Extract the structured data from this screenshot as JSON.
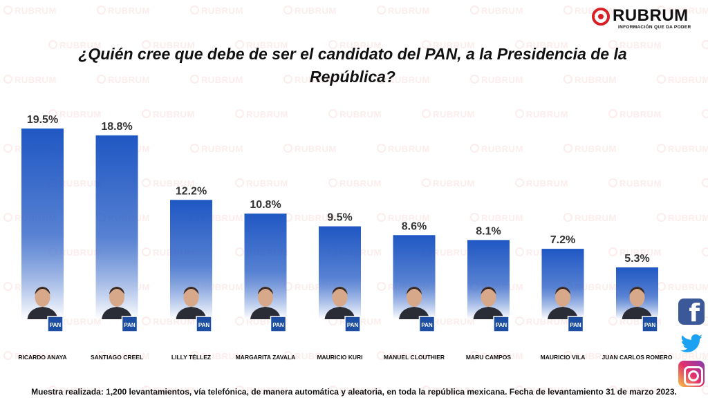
{
  "brand": {
    "name": "RUBRUM",
    "tagline": "INFORMACIÓN QUE DA PODER",
    "watermark": "RUBRUM",
    "accent_color": "#d81f26"
  },
  "chart_data": {
    "type": "bar",
    "title": "¿Quién cree que debe de ser el candidato del PAN, a la Presidencia de la República?",
    "categories": [
      "RICARDO ANAYA",
      "SANTIAGO CREEL",
      "LILLY TÉLLEZ",
      "MARGARITA ZAVALA",
      "MAURICIO KURI",
      "MANUEL CLOUTHIER",
      "MARU CAMPOS",
      "MAURICIO VILA",
      "JUAN CARLOS ROMERO"
    ],
    "values": [
      19.5,
      18.8,
      12.2,
      10.8,
      9.5,
      8.6,
      8.1,
      7.2,
      5.3
    ],
    "data_labels": [
      "19.5%",
      "18.8%",
      "12.2%",
      "10.8%",
      "9.5%",
      "8.6%",
      "8.1%",
      "7.2%",
      "5.3%"
    ],
    "party_badge": "PAN",
    "bar_color_top": "#1f57c3",
    "bar_color_bottom": "#ffffff",
    "grid": false,
    "legend": "none"
  },
  "social": {
    "icons": [
      "facebook-icon",
      "twitter-icon",
      "instagram-icon"
    ]
  },
  "footnote": "Muestra realizada: 1,200 levantamientos, vía telefónica, de manera automática y aleatoria, en toda la república mexicana. Fecha de levantamiento 31 de marzo 2023."
}
